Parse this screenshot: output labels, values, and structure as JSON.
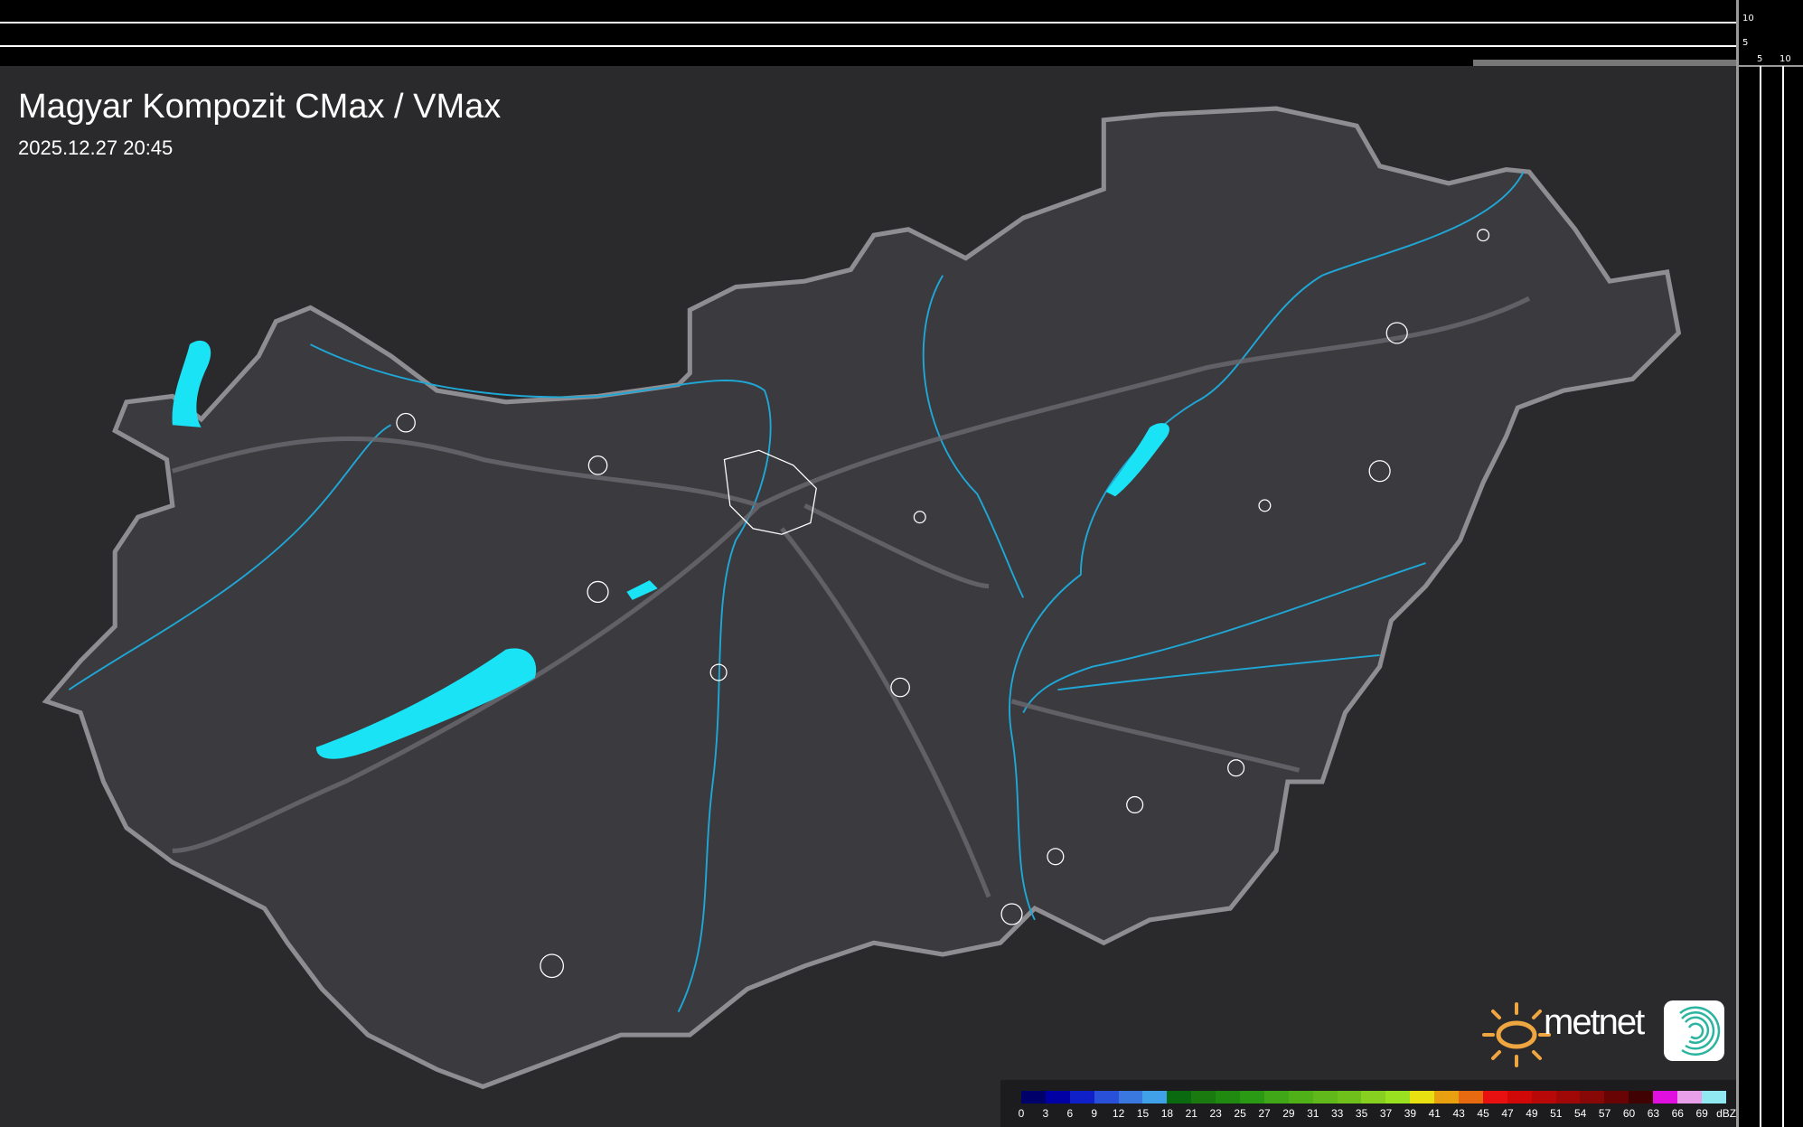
{
  "header": {
    "title": "Magyar Kompozit CMax / VMax",
    "timestamp": "2025.12.27 20:45"
  },
  "axes": {
    "top_ticks": [
      "10",
      "5"
    ],
    "right_ticks": [
      "5",
      "10"
    ]
  },
  "brand": {
    "name": "metnet",
    "sun_color": "#f0a640",
    "swirl_color": "#2bb5a0"
  },
  "colors": {
    "background": "#2a2a2d",
    "border": "#8d8d92",
    "rivers": "#1fa7d6",
    "lakes": "#19e3f5",
    "settlements": "#ffffff"
  },
  "legend": {
    "unit": "dBZ",
    "labels": [
      "0",
      "3",
      "6",
      "9",
      "12",
      "15",
      "18",
      "21",
      "23",
      "25",
      "27",
      "29",
      "31",
      "33",
      "35",
      "37",
      "39",
      "41",
      "43",
      "45",
      "47",
      "49",
      "51",
      "54",
      "57",
      "60",
      "63",
      "66",
      "69"
    ],
    "colors": [
      "#00006a",
      "#0000a5",
      "#1020c8",
      "#2850d8",
      "#3a78e0",
      "#40a0e8",
      "#0a6a10",
      "#1a7a10",
      "#208a10",
      "#2a9a14",
      "#40a818",
      "#50b018",
      "#60b81a",
      "#70c01c",
      "#88d020",
      "#98e020",
      "#e8e010",
      "#e8a010",
      "#e86a10",
      "#e81010",
      "#d00808",
      "#b80808",
      "#a00808",
      "#880808",
      "#680404",
      "#400202",
      "#e010e0",
      "#e8a0e8",
      "#90e8f0"
    ]
  }
}
